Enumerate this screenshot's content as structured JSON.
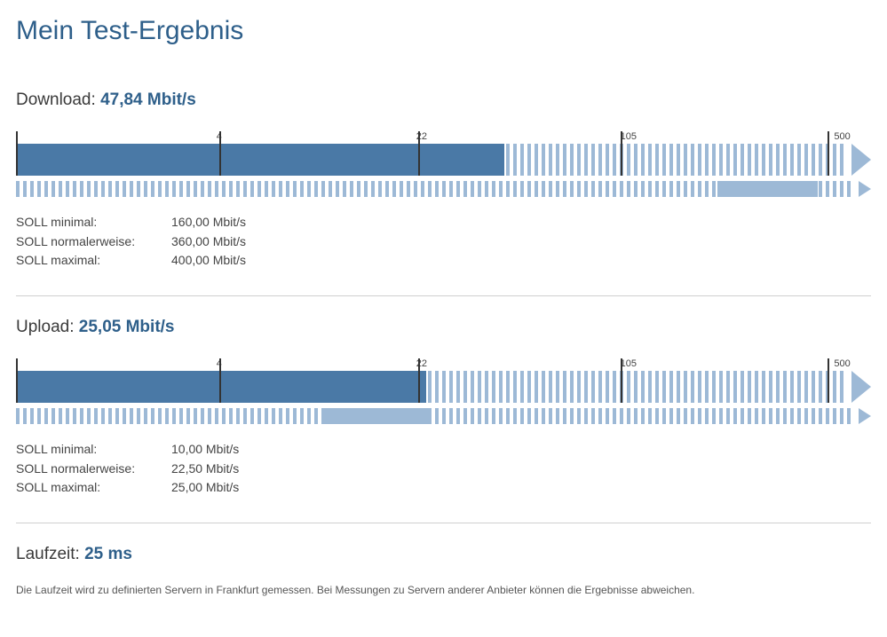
{
  "title": "Mein Test-Ergebnis",
  "colors": {
    "primary": "#4a79a6",
    "light": "#9db9d6",
    "heading": "#2e5f8a",
    "tick": "#333333"
  },
  "scale": {
    "ticks": [
      {
        "label": "4",
        "pos_pct": 24.5
      },
      {
        "label": "22",
        "pos_pct": 48.5
      },
      {
        "label": "105",
        "pos_pct": 73.0
      },
      {
        "label": "500",
        "pos_pct": 98.0
      }
    ]
  },
  "download": {
    "label": "Download:",
    "value": "47,84 Mbit/s",
    "main_fill_pct": 59.0,
    "ref_fill_start_pct": 84.0,
    "ref_fill_end_pct": 96.0,
    "soll": [
      {
        "label": "SOLL minimal:",
        "value": "160,00 Mbit/s"
      },
      {
        "label": "SOLL normalerweise:",
        "value": "360,00 Mbit/s"
      },
      {
        "label": "SOLL maximal:",
        "value": "400,00 Mbit/s"
      }
    ]
  },
  "upload": {
    "label": "Upload:",
    "value": "25,05 Mbit/s",
    "main_fill_pct": 49.5,
    "ref_fill_start_pct": 37.0,
    "ref_fill_end_pct": 49.5,
    "soll": [
      {
        "label": "SOLL minimal:",
        "value": "10,00 Mbit/s"
      },
      {
        "label": "SOLL normalerweise:",
        "value": "22,50 Mbit/s"
      },
      {
        "label": "SOLL maximal:",
        "value": "25,00 Mbit/s"
      }
    ]
  },
  "runtime": {
    "label": "Laufzeit:",
    "value": "25 ms",
    "note": "Die Laufzeit wird zu definierten Servern in Frankfurt gemessen. Bei Messungen zu Servern anderer Anbieter können die Ergebnisse abweichen."
  }
}
